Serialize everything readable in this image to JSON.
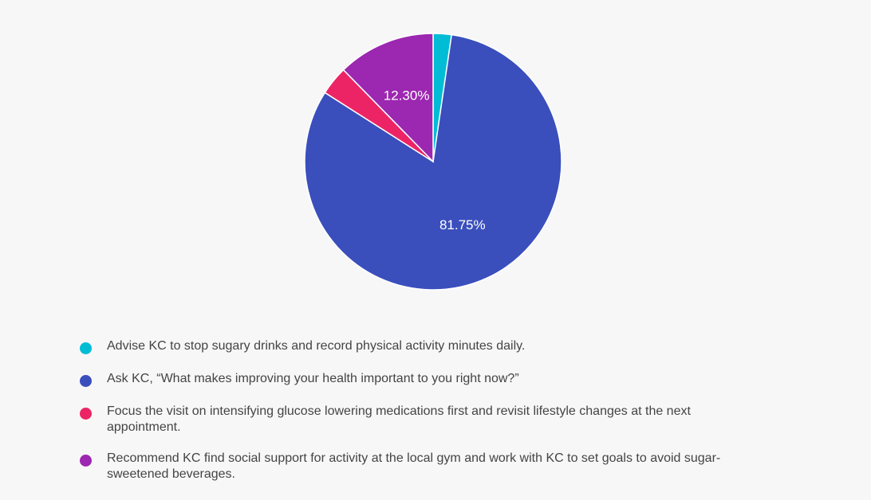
{
  "chart_data": {
    "type": "pie",
    "categories": [
      "Advise KC to stop sugary drinks and record physical activity minutes daily.",
      "Ask KC, “What makes improving your health important to you right now?”",
      "Focus the visit on intensifying glucose lowering medications first and revisit lifestyle changes at the next appointment.",
      "Recommend KC find social support for activity at the local gym and work with KC to set goals to avoid sugar-sweetened beverages."
    ],
    "values": [
      2.3,
      81.75,
      3.65,
      12.3
    ],
    "data_labels": [
      "",
      "81.75%",
      "",
      "12.30%"
    ],
    "colors": [
      "#00bcd4",
      "#3a4fbc",
      "#ec2465",
      "#9c27b0"
    ],
    "legend_position": "bottom"
  }
}
